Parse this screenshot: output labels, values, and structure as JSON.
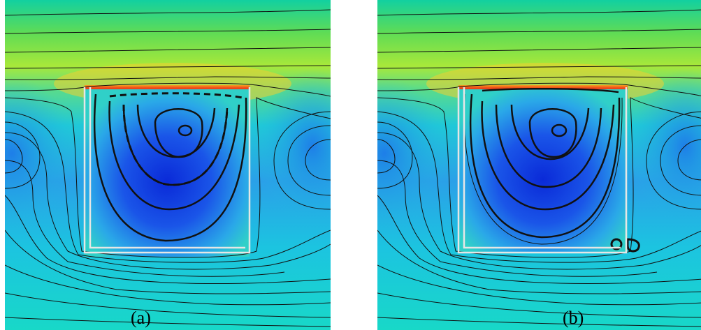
{
  "panels": [
    {
      "label": "(a)",
      "small_vortex_at_cavity_corner": false
    },
    {
      "label": "(b)",
      "small_vortex_at_cavity_corner": true
    }
  ],
  "colors": {
    "high_velocity": "#e8341c",
    "upper_flow": "#7fe04a",
    "mid_flow": "#18d8c0",
    "cavity_core": "#0a3fd8",
    "streamline": "#111111",
    "cavity_wall": "#e8e8e8"
  }
}
